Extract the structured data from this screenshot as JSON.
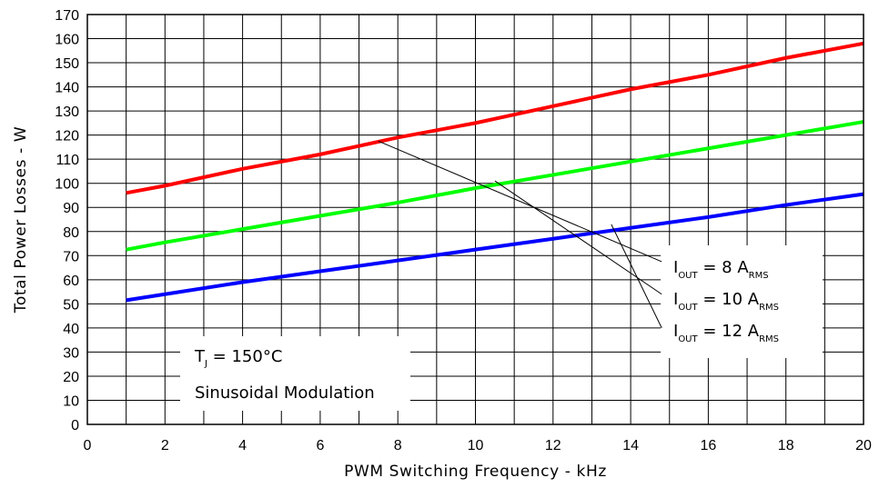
{
  "chart_data": {
    "type": "line",
    "xlabel": "PWM Switching Frequency - kHz",
    "ylabel": "Total Power Losses - W",
    "xlim": [
      0,
      20
    ],
    "ylim": [
      0,
      170
    ],
    "xticks": [
      0,
      2,
      4,
      6,
      8,
      10,
      12,
      14,
      16,
      18,
      20
    ],
    "yticks": [
      0,
      10,
      20,
      30,
      40,
      50,
      60,
      70,
      80,
      90,
      100,
      110,
      120,
      130,
      140,
      150,
      160,
      170
    ],
    "grid": true,
    "x": [
      1,
      2,
      4,
      6,
      8,
      10,
      12,
      14,
      16,
      18,
      20
    ],
    "series": [
      {
        "name": "IOUT = 8 ARMS",
        "color": "#ff0000",
        "values": [
          96,
          99,
          106,
          112,
          119,
          125,
          132,
          139,
          145,
          152,
          158
        ]
      },
      {
        "name": "IOUT = 10 ARMS",
        "color": "#00ff00",
        "values": [
          72.5,
          75.5,
          81,
          86.5,
          92,
          98,
          103.5,
          109,
          114.5,
          120,
          125.5
        ]
      },
      {
        "name": "IOUT = 12 ARMS",
        "color": "#0000ff",
        "values": [
          51.5,
          54,
          59,
          63.5,
          68,
          72.5,
          77,
          81.5,
          86,
          91,
          95.5
        ]
      }
    ],
    "legend": {
      "placement": "bottom-right",
      "entries": [
        {
          "main": "I",
          "sub": "OUT",
          "mid": " = 8 A",
          "sub2": "RMS"
        },
        {
          "main": "I",
          "sub": "OUT",
          "mid": " = 10 A",
          "sub2": "RMS"
        },
        {
          "main": "I",
          "sub": "OUT",
          "mid": " = 12 A",
          "sub2": "RMS"
        }
      ]
    },
    "conditions": {
      "line1_main": "T",
      "line1_sub": "J",
      "line1_rest": " = 150°C",
      "line2": "Sinusoidal Modulation"
    },
    "pointers": [
      {
        "from": [
          7.5,
          117.5
        ],
        "to": [
          14.8,
          67.5
        ]
      },
      {
        "from": [
          10.5,
          101
        ],
        "to": [
          14.8,
          54
        ]
      },
      {
        "from": [
          13.5,
          83
        ],
        "to": [
          14.8,
          40
        ]
      }
    ]
  }
}
